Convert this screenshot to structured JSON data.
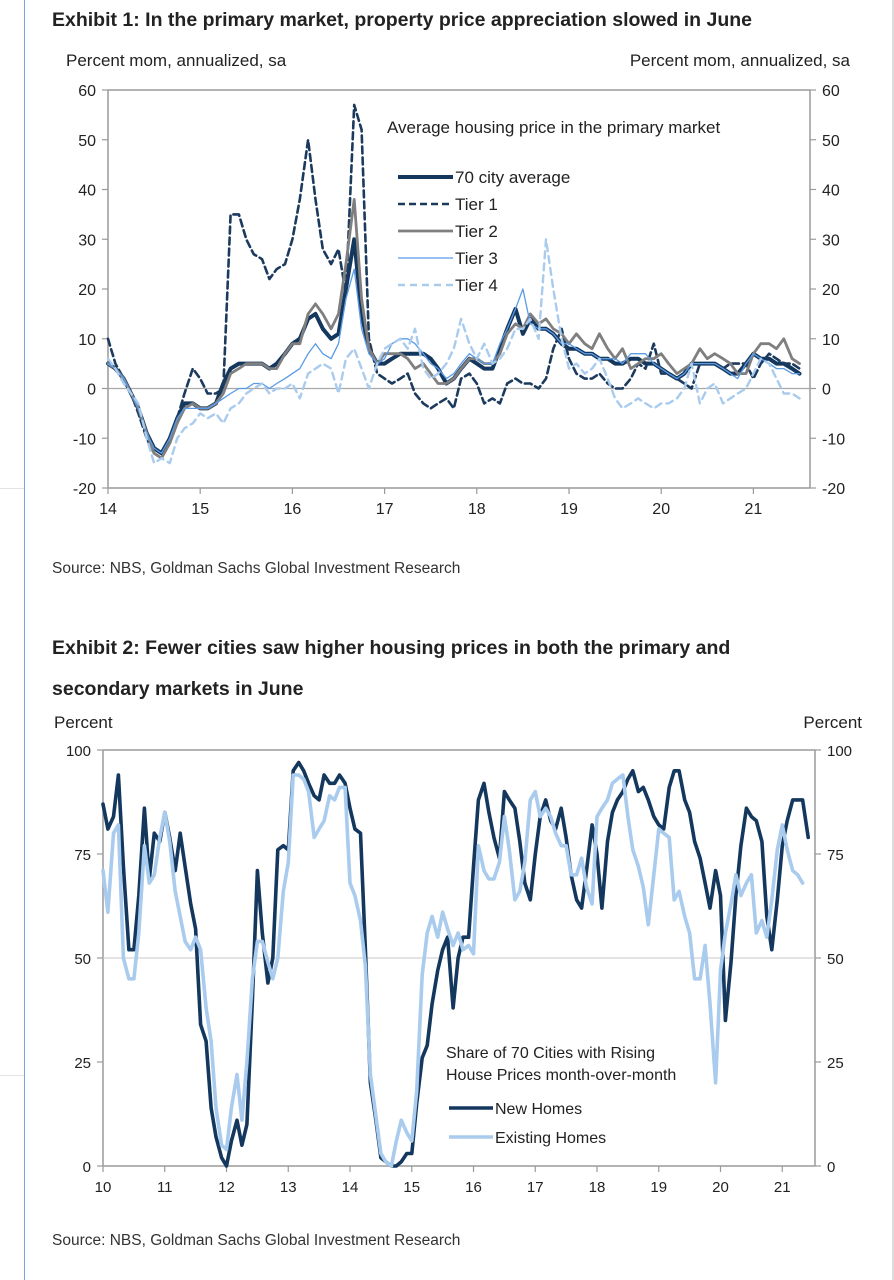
{
  "exhibit1": {
    "title": "Exhibit 1: In the primary market, property price appreciation slowed in June",
    "source": "Source: NBS, Goldman Sachs Global Investment Research"
  },
  "exhibit2": {
    "title_line1": "Exhibit 2: Fewer cities saw higher housing prices in both the primary and",
    "title_line2": "secondary markets in June",
    "source": "Source: NBS, Goldman Sachs Global Investment Research"
  },
  "chart_data": [
    {
      "type": "line",
      "title": "Average housing price in the primary market",
      "ylabel_left": "Percent mom, annualized, sa",
      "ylabel_right": "Percent mom, annualized, sa",
      "xlabel": "",
      "ylim": [
        -20,
        60
      ],
      "xlim": [
        14,
        21.6
      ],
      "yticks": [
        "60",
        "50",
        "40",
        "30",
        "20",
        "10",
        "0",
        "-10",
        "-20"
      ],
      "ytick_values": [
        60,
        50,
        40,
        30,
        20,
        10,
        0,
        -10,
        -20
      ],
      "xticks": [
        "14",
        "15",
        "16",
        "17",
        "18",
        "19",
        "20",
        "21"
      ],
      "xtick_values": [
        14,
        15,
        16,
        17,
        18,
        19,
        20,
        21
      ],
      "grid": false,
      "zero_line": true,
      "legend_position": "top-right",
      "x": [
        14.0,
        14.08,
        14.17,
        14.25,
        14.33,
        14.42,
        14.5,
        14.58,
        14.67,
        14.75,
        14.83,
        14.92,
        15.0,
        15.08,
        15.17,
        15.25,
        15.33,
        15.42,
        15.5,
        15.58,
        15.67,
        15.75,
        15.83,
        15.92,
        16.0,
        16.08,
        16.17,
        16.25,
        16.33,
        16.42,
        16.5,
        16.58,
        16.67,
        16.75,
        16.83,
        16.92,
        17.0,
        17.08,
        17.17,
        17.25,
        17.33,
        17.42,
        17.5,
        17.58,
        17.67,
        17.75,
        17.83,
        17.92,
        18.0,
        18.08,
        18.17,
        18.25,
        18.33,
        18.42,
        18.5,
        18.58,
        18.67,
        18.75,
        18.83,
        18.92,
        19.0,
        19.08,
        19.17,
        19.25,
        19.33,
        19.42,
        19.5,
        19.58,
        19.67,
        19.75,
        19.83,
        19.92,
        20.0,
        20.08,
        20.17,
        20.25,
        20.33,
        20.42,
        20.5,
        20.58,
        20.67,
        20.75,
        20.83,
        20.92,
        21.0,
        21.08,
        21.17,
        21.25,
        21.33,
        21.42,
        21.5
      ],
      "series": [
        {
          "name": "70 city average",
          "color": "#14375e",
          "style": "solid-thick",
          "values": [
            5,
            4,
            2,
            -1,
            -4,
            -9,
            -12,
            -13,
            -10,
            -6,
            -3,
            -3,
            -4,
            -4,
            -3,
            1,
            4,
            5,
            5,
            5,
            5,
            4,
            5,
            7,
            9,
            10,
            14,
            15,
            12,
            10,
            11,
            20,
            30,
            15,
            8,
            5,
            5,
            6,
            7,
            7,
            7,
            7,
            6,
            4,
            1,
            2,
            4,
            6,
            5,
            4,
            4,
            8,
            12,
            16,
            11,
            14,
            12,
            12,
            11,
            9,
            8,
            8,
            7,
            7,
            6,
            6,
            5,
            5,
            6,
            6,
            5,
            5,
            4,
            3,
            2,
            3,
            5,
            5,
            5,
            5,
            4,
            3,
            3,
            5,
            7,
            6,
            6,
            5,
            5,
            4,
            3
          ]
        },
        {
          "name": "Tier 1",
          "color": "#1b3a5e",
          "style": "dashed",
          "values": [
            10,
            5,
            2,
            -1,
            -5,
            -10,
            -13,
            -14,
            -10,
            -6,
            -1,
            4,
            2,
            -1,
            -1,
            0,
            35,
            35,
            30,
            27,
            26,
            22,
            24,
            25,
            30,
            38,
            50,
            38,
            28,
            25,
            28,
            19,
            57,
            52,
            10,
            3,
            2,
            1,
            2,
            3,
            -1,
            -3,
            -4,
            -3,
            -2,
            -4,
            2,
            3,
            1,
            -3,
            -2,
            -3,
            1,
            2,
            1,
            1,
            0,
            2,
            8,
            12,
            6,
            3,
            2,
            2,
            3,
            1,
            0,
            0,
            2,
            5,
            4,
            9,
            3,
            3,
            2,
            1,
            0,
            5,
            5,
            5,
            4,
            5,
            5,
            5,
            2,
            5,
            7,
            6,
            5,
            5,
            4
          ]
        },
        {
          "name": "Tier 2",
          "color": "#7f7f7f",
          "style": "solid-medium",
          "values": [
            5,
            4,
            2,
            -1,
            -4,
            -9,
            -13,
            -14,
            -11,
            -7,
            -4,
            -3,
            -4,
            -4,
            -3,
            -1,
            3,
            4,
            5,
            5,
            5,
            4,
            4,
            7,
            9,
            9,
            15,
            17,
            15,
            12,
            15,
            25,
            38,
            18,
            8,
            5,
            7,
            7,
            7,
            6,
            4,
            5,
            3,
            1,
            1,
            2,
            4,
            6,
            6,
            5,
            5,
            7,
            11,
            13,
            12,
            15,
            13,
            14,
            12,
            11,
            9,
            11,
            9,
            8,
            11,
            8,
            6,
            8,
            4,
            5,
            6,
            6,
            7,
            5,
            3,
            4,
            5,
            8,
            6,
            7,
            6,
            5,
            3,
            3,
            7,
            9,
            9,
            8,
            10,
            6,
            5
          ]
        },
        {
          "name": "Tier 3",
          "color": "#5a9be6",
          "style": "solid-thin",
          "values": [
            5,
            4,
            2,
            -1,
            -4,
            -9,
            -12,
            -13,
            -10,
            -6,
            -4,
            -4,
            -4,
            -4,
            -3,
            -2,
            -1,
            0,
            0,
            1,
            1,
            0,
            1,
            2,
            3,
            4,
            7,
            9,
            7,
            6,
            9,
            18,
            24,
            12,
            7,
            5,
            6,
            9,
            10,
            10,
            9,
            7,
            5,
            4,
            2,
            3,
            5,
            7,
            6,
            5,
            5,
            9,
            12,
            16,
            20,
            13,
            12,
            12,
            11,
            9,
            9,
            8,
            7,
            7,
            6,
            6,
            6,
            5,
            7,
            7,
            7,
            5,
            4,
            3,
            2,
            3,
            5,
            5,
            5,
            5,
            4,
            3,
            2,
            5,
            7,
            6,
            5,
            4,
            4,
            3,
            3
          ]
        },
        {
          "name": "Tier 4",
          "color": "#a9cbee",
          "style": "dashed",
          "values": [
            6,
            4,
            1,
            -1,
            -3,
            -10,
            -15,
            -14,
            -15,
            -10,
            -8,
            -7,
            -5,
            -6,
            -5,
            -7,
            -4,
            -3,
            -1,
            0,
            1,
            -1,
            0,
            0,
            1,
            -2,
            3,
            4,
            5,
            4,
            -1,
            6,
            8,
            4,
            0,
            5,
            8,
            9,
            10,
            8,
            12,
            4,
            2,
            3,
            5,
            8,
            14,
            9,
            6,
            9,
            5,
            6,
            8,
            12,
            12,
            14,
            10,
            30,
            20,
            10,
            4,
            5,
            3,
            4,
            6,
            2,
            -2,
            -4,
            -3,
            -2,
            -3,
            -4,
            -3,
            -3,
            -2,
            0,
            5,
            -3,
            0,
            1,
            -3,
            -2,
            -1,
            0,
            3,
            6,
            5,
            2,
            -1,
            -1,
            -2
          ]
        }
      ]
    },
    {
      "type": "line",
      "title": "Share of 70 Cities with Rising House Prices month-over-month",
      "ylabel_left": "Percent",
      "ylabel_right": "Percent",
      "xlabel": "",
      "ylim": [
        0,
        100
      ],
      "xlim": [
        10,
        21.6
      ],
      "yticks": [
        "100",
        "75",
        "50",
        "25",
        "0"
      ],
      "ytick_values": [
        100,
        75,
        50,
        25,
        0
      ],
      "xticks": [
        "10",
        "11",
        "12",
        "13",
        "14",
        "15",
        "16",
        "17",
        "18",
        "19",
        "20",
        "21"
      ],
      "xtick_values": [
        10,
        11,
        12,
        13,
        14,
        15,
        16,
        17,
        18,
        19,
        20,
        21
      ],
      "grid": false,
      "reference_line": 50,
      "legend_position": "bottom-center",
      "x": [
        10.0,
        10.08,
        10.17,
        10.25,
        10.33,
        10.42,
        10.5,
        10.58,
        10.67,
        10.75,
        10.83,
        10.92,
        11.0,
        11.08,
        11.17,
        11.25,
        11.33,
        11.42,
        11.5,
        11.58,
        11.67,
        11.75,
        11.83,
        11.92,
        12.0,
        12.08,
        12.17,
        12.25,
        12.33,
        12.42,
        12.5,
        12.58,
        12.67,
        12.75,
        12.83,
        12.92,
        13.0,
        13.08,
        13.17,
        13.25,
        13.33,
        13.42,
        13.5,
        13.58,
        13.67,
        13.75,
        13.83,
        13.92,
        14.0,
        14.08,
        14.17,
        14.25,
        14.33,
        14.42,
        14.5,
        14.58,
        14.67,
        14.75,
        14.83,
        14.92,
        15.0,
        15.08,
        15.17,
        15.25,
        15.33,
        15.42,
        15.5,
        15.58,
        15.67,
        15.75,
        15.83,
        15.92,
        16.0,
        16.08,
        16.17,
        16.25,
        16.33,
        16.42,
        16.5,
        16.58,
        16.67,
        16.75,
        16.83,
        16.92,
        17.0,
        17.08,
        17.17,
        17.25,
        17.33,
        17.42,
        17.5,
        17.58,
        17.67,
        17.75,
        17.83,
        17.92,
        18.0,
        18.08,
        18.17,
        18.25,
        18.33,
        18.42,
        18.5,
        18.58,
        18.67,
        18.75,
        18.83,
        18.92,
        19.0,
        19.08,
        19.17,
        19.25,
        19.33,
        19.42,
        19.5,
        19.58,
        19.67,
        19.75,
        19.83,
        19.92,
        20.0,
        20.08,
        20.17,
        20.25,
        20.33,
        20.42,
        20.5,
        20.58,
        20.67,
        20.75,
        20.83,
        20.92,
        21.0,
        21.08,
        21.17,
        21.25,
        21.33,
        21.42,
        21.5
      ],
      "series": [
        {
          "name": "New Homes",
          "color": "#14375e",
          "values": [
            87,
            81,
            84,
            94,
            72,
            52,
            52,
            65,
            86,
            69,
            80,
            78,
            85,
            79,
            71,
            80,
            72,
            63,
            57,
            34,
            30,
            14,
            7,
            2,
            0,
            6,
            11,
            5,
            10,
            40,
            71,
            56,
            44,
            50,
            76,
            77,
            76,
            95,
            97,
            95,
            92,
            89,
            88,
            94,
            92,
            92,
            94,
            92,
            86,
            81,
            80,
            52,
            20,
            11,
            2,
            1,
            0,
            0,
            1,
            3,
            3,
            15,
            26,
            29,
            39,
            47,
            52,
            55,
            38,
            50,
            55,
            55,
            72,
            88,
            92,
            85,
            79,
            74,
            90,
            88,
            86,
            78,
            68,
            64,
            75,
            84,
            88,
            83,
            81,
            86,
            79,
            70,
            64,
            62,
            71,
            82,
            75,
            62,
            78,
            85,
            88,
            90,
            93,
            95,
            90,
            91,
            88,
            84,
            82,
            81,
            91,
            95,
            95,
            88,
            85,
            78,
            74,
            68,
            62,
            71,
            65,
            35,
            49,
            65,
            77,
            86,
            84,
            83,
            78,
            60,
            52,
            64,
            77,
            83,
            88,
            88,
            88,
            79
          ]
        },
        {
          "name": "Existing Homes",
          "color": "#a9cbee",
          "values": [
            71,
            61,
            80,
            82,
            50,
            45,
            45,
            56,
            77,
            68,
            70,
            79,
            85,
            78,
            66,
            60,
            54,
            52,
            55,
            52,
            38,
            30,
            14,
            5,
            4,
            14,
            22,
            11,
            25,
            45,
            54,
            54,
            49,
            45,
            50,
            66,
            73,
            94,
            94,
            93,
            90,
            79,
            81,
            83,
            89,
            88,
            91,
            91,
            68,
            65,
            59,
            48,
            22,
            12,
            3,
            1,
            0,
            6,
            11,
            8,
            6,
            18,
            46,
            56,
            60,
            55,
            61,
            57,
            53,
            56,
            52,
            53,
            51,
            77,
            71,
            69,
            69,
            73,
            84,
            76,
            64,
            66,
            73,
            88,
            90,
            84,
            86,
            84,
            80,
            77,
            77,
            70,
            70,
            74,
            67,
            63,
            84,
            86,
            88,
            92,
            93,
            94,
            84,
            76,
            72,
            67,
            58,
            70,
            81,
            80,
            79,
            64,
            66,
            60,
            56,
            45,
            45,
            53,
            39,
            20,
            47,
            56,
            63,
            70,
            65,
            68,
            70,
            56,
            59,
            55,
            64,
            76,
            82,
            76,
            71,
            70,
            68
          ]
        }
      ]
    }
  ]
}
